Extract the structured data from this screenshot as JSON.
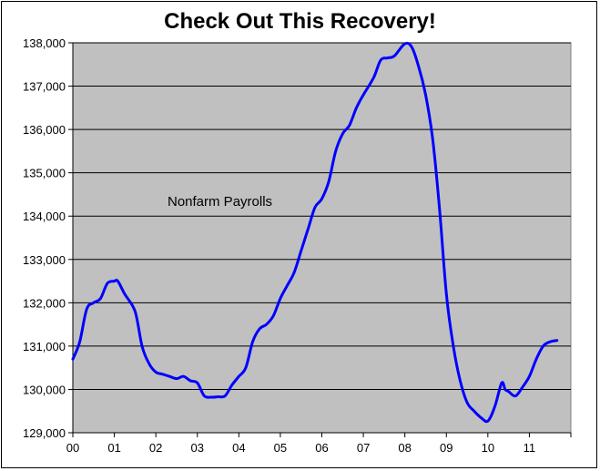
{
  "chart_data": {
    "type": "line",
    "title": "Check Out This Recovery!",
    "annotation": "Nonfarm Payrolls",
    "xlabel": "",
    "ylabel": "",
    "x_tick_labels": [
      "00",
      "01",
      "02",
      "03",
      "04",
      "05",
      "06",
      "07",
      "08",
      "09",
      "10",
      "11"
    ],
    "y_ticks": [
      129000,
      130000,
      131000,
      132000,
      133000,
      134000,
      135000,
      136000,
      137000,
      138000
    ],
    "y_tick_labels": [
      "129,000",
      "130,000",
      "131,000",
      "132,000",
      "133,000",
      "134,000",
      "135,000",
      "136,000",
      "137,000",
      "138,000"
    ],
    "xlim": [
      0,
      12
    ],
    "ylim": [
      129000,
      138000
    ],
    "grid": true,
    "legend": "none",
    "colors": {
      "plot_bg": "#c0c0c0",
      "line": "#0000ff",
      "grid": "#000000"
    },
    "series": [
      {
        "x": [
          0.0,
          0.167,
          0.333,
          0.5,
          0.667,
          0.833,
          1.0,
          1.083,
          1.25,
          1.5,
          1.667,
          1.833,
          2.0,
          2.167,
          2.333,
          2.5,
          2.667,
          2.833,
          3.0,
          3.167,
          3.333,
          3.5,
          3.667,
          3.833,
          4.0,
          4.167,
          4.333,
          4.5,
          4.667,
          4.833,
          5.0,
          5.167,
          5.333,
          5.5,
          5.667,
          5.833,
          6.0,
          6.167,
          6.333,
          6.5,
          6.667,
          6.833,
          7.0,
          7.25,
          7.417,
          7.583,
          7.75,
          8.0,
          8.167,
          8.333,
          8.5,
          8.667,
          8.833,
          9.0,
          9.167,
          9.333,
          9.5,
          9.667,
          9.833,
          10.0,
          10.167,
          10.333,
          10.417,
          10.5,
          10.667,
          10.833,
          11.0,
          11.167,
          11.333,
          11.5,
          11.667
        ],
        "y": [
          130700,
          131100,
          131850,
          132000,
          132100,
          132450,
          132500,
          132500,
          132200,
          131800,
          131000,
          130600,
          130400,
          130350,
          130300,
          130250,
          130300,
          130200,
          130150,
          129850,
          129820,
          129830,
          129850,
          130100,
          130300,
          130500,
          131100,
          131400,
          131500,
          131700,
          132100,
          132400,
          132700,
          133200,
          133700,
          134200,
          134400,
          134800,
          135500,
          135900,
          136100,
          136500,
          136800,
          137200,
          137600,
          137650,
          137700,
          137980,
          137900,
          137450,
          136800,
          135800,
          134200,
          132200,
          131000,
          130200,
          129700,
          129500,
          129350,
          129270,
          129600,
          130150,
          130000,
          129950,
          129850,
          130050,
          130300,
          130700,
          131000,
          131100,
          131130
        ]
      }
    ]
  }
}
